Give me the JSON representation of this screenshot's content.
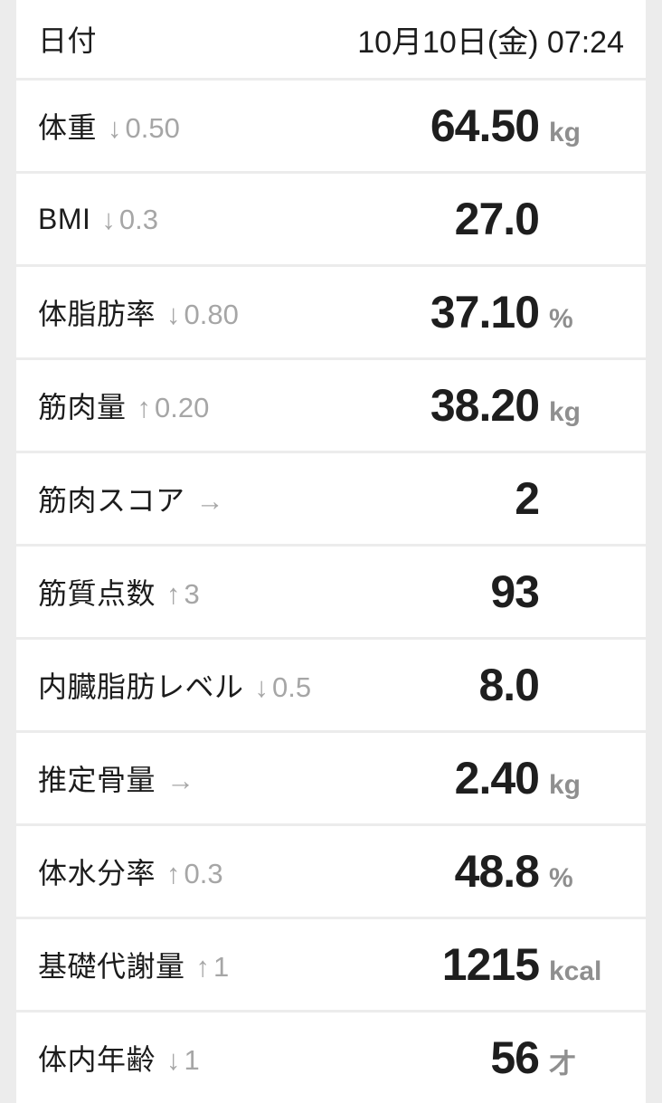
{
  "colors": {
    "page_background": "#ececec",
    "row_background": "#ffffff",
    "separator": "#e4e4e4",
    "text_primary": "#1c1c1c",
    "text_muted": "#a6a6a6",
    "unit_gray": "#8f8f8f"
  },
  "header": {
    "label": "日付",
    "value": "10月10日(金) 07:24"
  },
  "rows": [
    {
      "label": "体重",
      "trend": {
        "direction": "down",
        "arrow": "↓",
        "delta": "0.50"
      },
      "value": "64.50",
      "unit": "kg"
    },
    {
      "label": "BMI",
      "trend": {
        "direction": "down",
        "arrow": "↓",
        "delta": "0.3"
      },
      "value": "27.0",
      "unit": ""
    },
    {
      "label": "体脂肪率",
      "trend": {
        "direction": "down",
        "arrow": "↓",
        "delta": "0.80"
      },
      "value": "37.10",
      "unit": "%"
    },
    {
      "label": "筋肉量",
      "trend": {
        "direction": "up",
        "arrow": "↑",
        "delta": "0.20"
      },
      "value": "38.20",
      "unit": "kg"
    },
    {
      "label": "筋肉スコア",
      "trend": {
        "direction": "flat",
        "arrow": "→",
        "delta": ""
      },
      "value": "2",
      "unit": ""
    },
    {
      "label": "筋質点数",
      "trend": {
        "direction": "up",
        "arrow": "↑",
        "delta": "3"
      },
      "value": "93",
      "unit": ""
    },
    {
      "label": "内臓脂肪レベル",
      "trend": {
        "direction": "down",
        "arrow": "↓",
        "delta": "0.5"
      },
      "value": "8.0",
      "unit": ""
    },
    {
      "label": "推定骨量",
      "trend": {
        "direction": "flat",
        "arrow": "→",
        "delta": ""
      },
      "value": "2.40",
      "unit": "kg"
    },
    {
      "label": "体水分率",
      "trend": {
        "direction": "up",
        "arrow": "↑",
        "delta": "0.3"
      },
      "value": "48.8",
      "unit": "%"
    },
    {
      "label": "基礎代謝量",
      "trend": {
        "direction": "up",
        "arrow": "↑",
        "delta": "1"
      },
      "value": "1215",
      "unit": "kcal"
    },
    {
      "label": "体内年齢",
      "trend": {
        "direction": "down",
        "arrow": "↓",
        "delta": "1"
      },
      "value": "56",
      "unit": "才"
    }
  ]
}
